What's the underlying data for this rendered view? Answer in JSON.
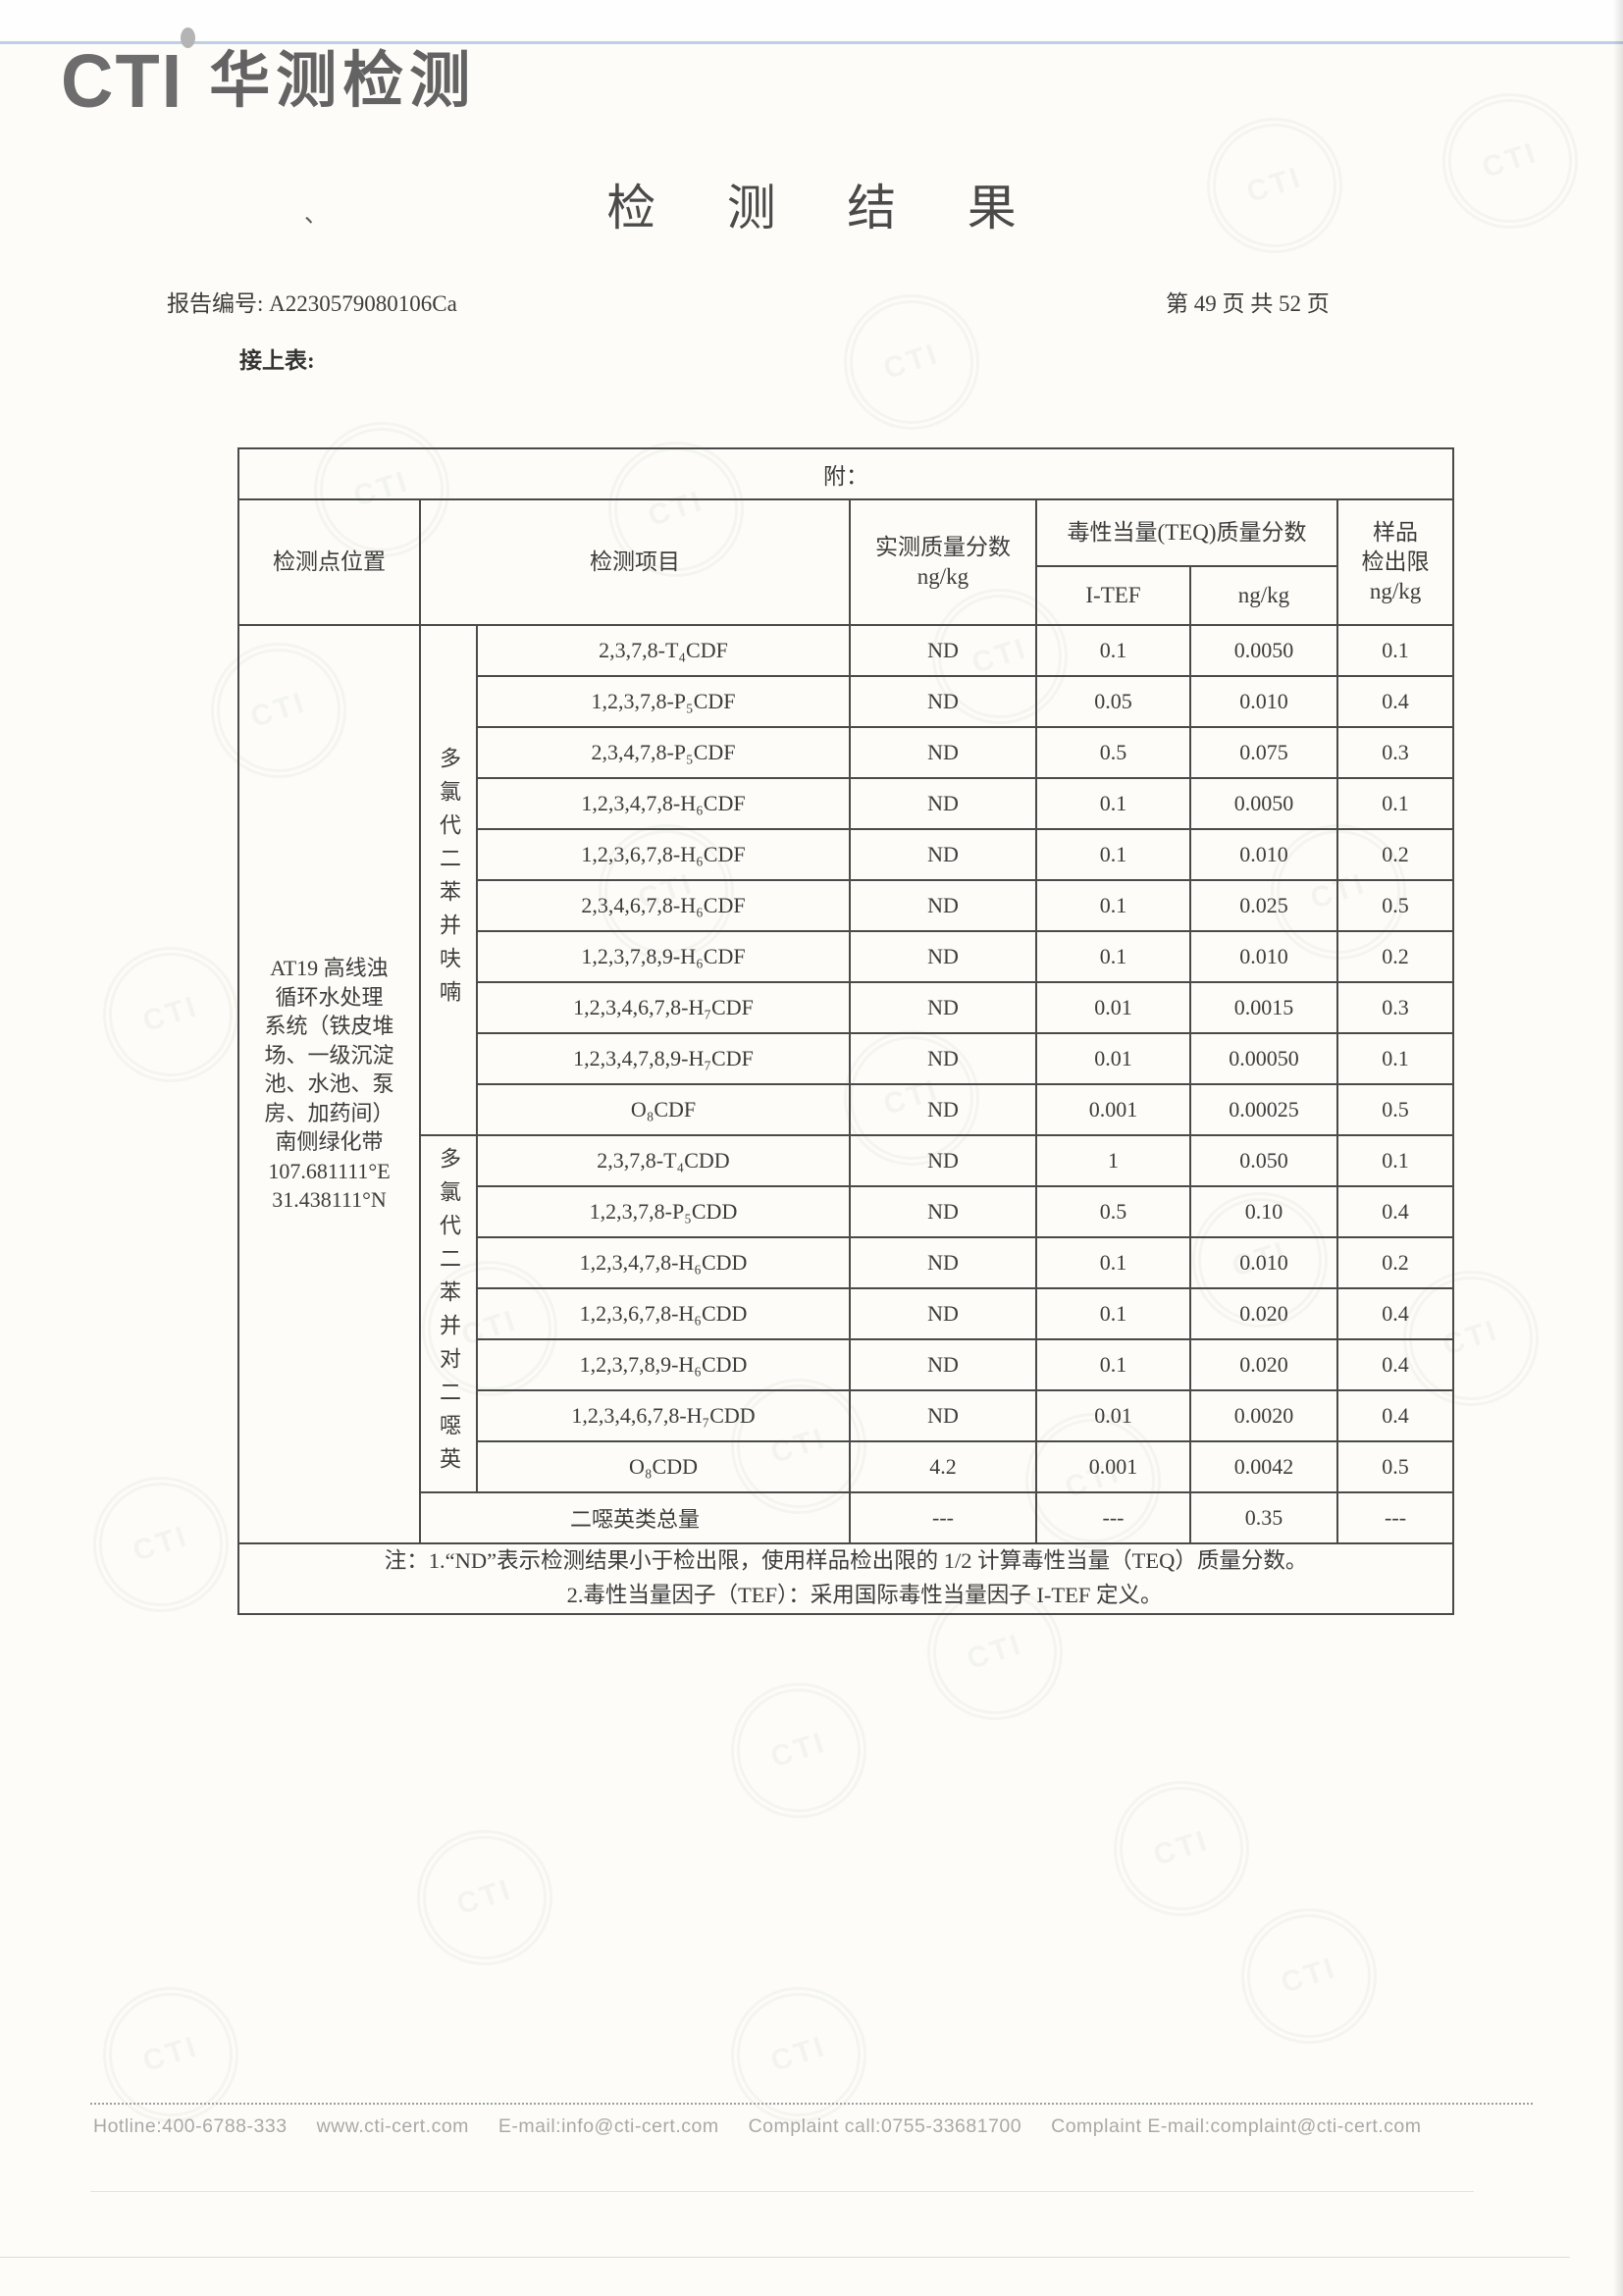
{
  "page": {
    "logo": {
      "cti": "CTI",
      "company": "华测检测"
    },
    "title": "检 测 结 果",
    "report_no": "报告编号: A2230579080106Ca",
    "page_info": "第 49 页 共 52 页",
    "table_lead": "接上表:",
    "artifacts": {
      "mark1": "、",
      "mark2": "`"
    },
    "footer": {
      "hotline": "Hotline:400-6788-333",
      "website": "www.cti-cert.com",
      "email": "E-mail:info@cti-cert.com",
      "complaint_call": "Complaint call:0755-33681700",
      "complaint_email": "Complaint E-mail:complaint@cti-cert.com"
    }
  },
  "table": {
    "attachment_label": "附：",
    "headers": {
      "location": "检测点位置",
      "item": "检测项目",
      "measured": "实测质量分数",
      "measured_unit": "ng/kg",
      "teq": "毒性当量(TEQ)质量分数",
      "itef": "I-TEF",
      "teq_unit": "ng/kg",
      "limit_line1": "样品",
      "limit_line2": "检出限",
      "limit_line3": "ng/kg"
    },
    "location": "AT19 高线浊\n循环水处理\n系统（铁皮堆\n场、一级沉淀\n池、水池、泵\n房、加药间）\n南侧绿化带\n107.681111°E\n31.438111°N",
    "groups": [
      {
        "label": "多氯代二苯并呋喃",
        "rows": [
          {
            "item": "2,3,7,8-T₄CDF",
            "measured": "ND",
            "itef": "0.1",
            "teq": "0.0050",
            "limit": "0.1"
          },
          {
            "item": "1,2,3,7,8-P₅CDF",
            "measured": "ND",
            "itef": "0.05",
            "teq": "0.010",
            "limit": "0.4"
          },
          {
            "item": "2,3,4,7,8-P₅CDF",
            "measured": "ND",
            "itef": "0.5",
            "teq": "0.075",
            "limit": "0.3"
          },
          {
            "item": "1,2,3,4,7,8-H₆CDF",
            "measured": "ND",
            "itef": "0.1",
            "teq": "0.0050",
            "limit": "0.1"
          },
          {
            "item": "1,2,3,6,7,8-H₆CDF",
            "measured": "ND",
            "itef": "0.1",
            "teq": "0.010",
            "limit": "0.2"
          },
          {
            "item": "2,3,4,6,7,8-H₆CDF",
            "measured": "ND",
            "itef": "0.1",
            "teq": "0.025",
            "limit": "0.5"
          },
          {
            "item": "1,2,3,7,8,9-H₆CDF",
            "measured": "ND",
            "itef": "0.1",
            "teq": "0.010",
            "limit": "0.2"
          },
          {
            "item": "1,2,3,4,6,7,8-H₇CDF",
            "measured": "ND",
            "itef": "0.01",
            "teq": "0.0015",
            "limit": "0.3"
          },
          {
            "item": "1,2,3,4,7,8,9-H₇CDF",
            "measured": "ND",
            "itef": "0.01",
            "teq": "0.00050",
            "limit": "0.1"
          },
          {
            "item": "O₈CDF",
            "measured": "ND",
            "itef": "0.001",
            "teq": "0.00025",
            "limit": "0.5"
          }
        ]
      },
      {
        "label": "多氯代二苯并对二噁英",
        "rows": [
          {
            "item": "2,3,7,8-T₄CDD",
            "measured": "ND",
            "itef": "1",
            "teq": "0.050",
            "limit": "0.1"
          },
          {
            "item": "1,2,3,7,8-P₅CDD",
            "measured": "ND",
            "itef": "0.5",
            "teq": "0.10",
            "limit": "0.4"
          },
          {
            "item": "1,2,3,4,7,8-H₆CDD",
            "measured": "ND",
            "itef": "0.1",
            "teq": "0.010",
            "limit": "0.2"
          },
          {
            "item": "1,2,3,6,7,8-H₆CDD",
            "measured": "ND",
            "itef": "0.1",
            "teq": "0.020",
            "limit": "0.4"
          },
          {
            "item": "1,2,3,7,8,9-H₆CDD",
            "measured": "ND",
            "itef": "0.1",
            "teq": "0.020",
            "limit": "0.4"
          },
          {
            "item": "1,2,3,4,6,7,8-H₇CDD",
            "measured": "ND",
            "itef": "0.01",
            "teq": "0.0020",
            "limit": "0.4"
          },
          {
            "item": "O₈CDD",
            "measured": "4.2",
            "itef": "0.001",
            "teq": "0.0042",
            "limit": "0.5"
          }
        ]
      }
    ],
    "total_row": {
      "label": "二噁英类总量",
      "measured": "---",
      "itef": "---",
      "teq": "0.35",
      "limit": "---"
    },
    "notes": [
      "注：1.“ND”表示检测结果小于检出限，使用样品检出限的 1/2 计算毒性当量（TEQ）质量分数。",
      "2.毒性当量因子（TEF）：采用国际毒性当量因子 I-TEF 定义。"
    ]
  }
}
